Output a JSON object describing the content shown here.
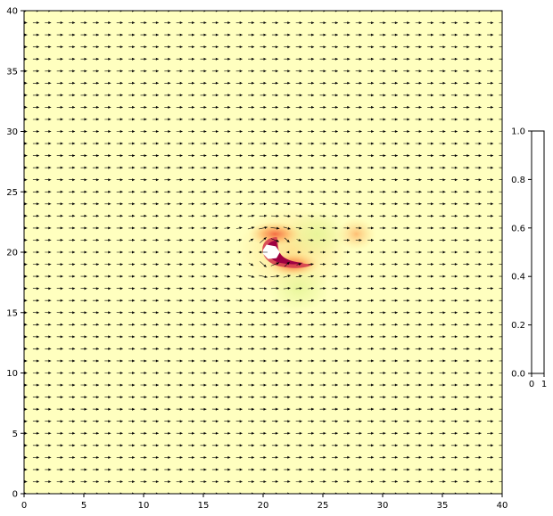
{
  "chart_data": {
    "type": "heatmap",
    "overlay": "quiver",
    "title": "",
    "xlabel": "",
    "ylabel": "",
    "xlim": [
      0,
      40
    ],
    "ylim": [
      0,
      40
    ],
    "xticks": [
      "0",
      "5",
      "10",
      "15",
      "20",
      "25",
      "30",
      "35",
      "40"
    ],
    "yticks": [
      "0",
      "5",
      "10",
      "15",
      "20",
      "25",
      "30",
      "35",
      "40"
    ],
    "grid": false,
    "colormap": "Spectral-like (yellow background, red/magenta high values)",
    "background_color": "#ffffbf",
    "high_color": "#9e0142",
    "obstacle": {
      "center": [
        20.7,
        20.0
      ],
      "radius": 0.7,
      "color": "#ffffff"
    },
    "field_features": [
      {
        "kind": "crescent-peak",
        "center": [
          21.0,
          20.0
        ],
        "level": 1.0
      },
      {
        "kind": "lobe",
        "center": [
          22.5,
          19.0
        ],
        "level": 0.8
      },
      {
        "kind": "lobe",
        "center": [
          21.0,
          21.5
        ],
        "level": 0.55
      },
      {
        "kind": "warm-spot",
        "center": [
          27.8,
          21.5
        ],
        "level": 0.25
      },
      {
        "kind": "cool-spot",
        "center": [
          23.0,
          17.0
        ],
        "level": -0.25
      },
      {
        "kind": "cool-spot",
        "center": [
          24.5,
          21.5
        ],
        "level": -0.15
      }
    ],
    "quiver": {
      "spacing": 1,
      "x_range": [
        0,
        40
      ],
      "y_range": [
        0,
        40
      ],
      "direction": "positive-x uniform flow, deflected around obstacle",
      "arrow_color": "#000000"
    },
    "colorbar": {
      "yticks": [
        "0.0",
        "0.2",
        "0.4",
        "0.6",
        "0.8",
        "1.0"
      ],
      "xticks": [
        "0",
        "1"
      ],
      "ylim": [
        0,
        1
      ],
      "xlim": [
        0,
        1
      ]
    }
  }
}
